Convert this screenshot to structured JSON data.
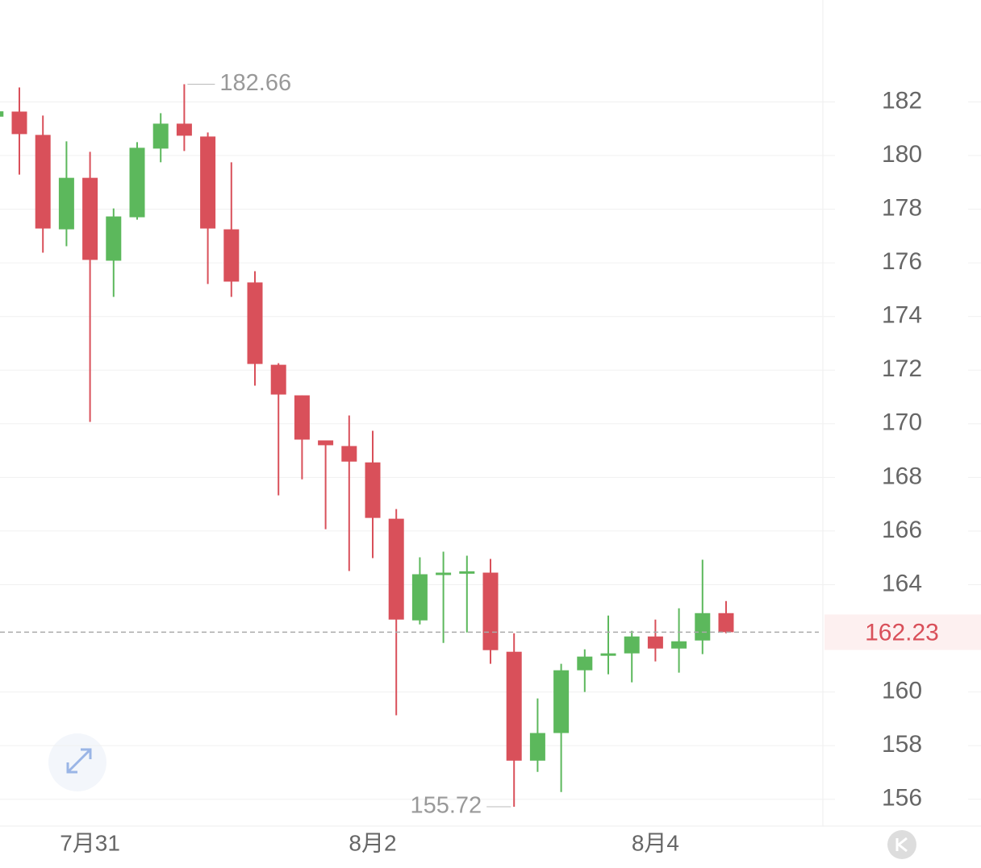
{
  "chart_data": {
    "type": "candlestick",
    "categories": [
      null,
      null,
      null,
      null,
      "7月31",
      null,
      null,
      null,
      null,
      null,
      null,
      null,
      null,
      null,
      null,
      null,
      "8月2",
      null,
      null,
      null,
      null,
      null,
      null,
      null,
      null,
      null,
      null,
      null,
      "8月4",
      null,
      null,
      null
    ],
    "open": [
      181.45,
      181.64,
      180.77,
      177.25,
      179.17,
      176.08,
      177.7,
      180.26,
      181.19,
      180.71,
      177.25,
      175.27,
      172.2,
      171.06,
      169.38,
      169.17,
      168.56,
      166.46,
      162.67,
      164.39,
      164.45,
      164.45,
      161.5,
      157.44,
      158.47,
      160.81,
      161.35,
      161.44,
      162.07,
      161.62,
      161.92,
      162.94
    ],
    "high": [
      181.7,
      182.54,
      181.49,
      180.53,
      180.14,
      178.03,
      180.5,
      181.58,
      182.66,
      180.86,
      179.75,
      175.69,
      172.26,
      171.06,
      169.38,
      170.31,
      169.74,
      166.82,
      165.02,
      165.23,
      165.08,
      164.96,
      162.19,
      159.76,
      161.05,
      161.59,
      162.85,
      162.28,
      162.7,
      163.12,
      164.93,
      163.39
    ],
    "low": [
      181.4,
      179.29,
      176.38,
      176.62,
      170.07,
      174.73,
      177.61,
      179.75,
      180.17,
      175.21,
      174.73,
      171.42,
      167.33,
      167.93,
      166.07,
      164.51,
      164.99,
      159.13,
      162.52,
      161.83,
      162.22,
      161.05,
      155.72,
      157.02,
      156.27,
      160.0,
      160.66,
      160.36,
      161.14,
      160.72,
      161.41,
      162.19
    ],
    "close": [
      181.65,
      180.8,
      177.28,
      179.17,
      176.11,
      177.73,
      180.29,
      181.19,
      180.74,
      177.28,
      175.3,
      172.23,
      171.09,
      169.41,
      169.2,
      168.59,
      166.49,
      162.7,
      164.39,
      164.45,
      164.5,
      161.56,
      157.44,
      158.47,
      160.81,
      161.32,
      161.44,
      162.07,
      161.62,
      161.89,
      162.94,
      162.23
    ],
    "up_color": "#5cb85c",
    "down_color": "#d9505a",
    "ylim": [
      155,
      185.8
    ],
    "yticks": [
      156,
      158,
      160,
      164,
      166,
      168,
      170,
      172,
      174,
      176,
      178,
      180,
      182
    ],
    "grid": true,
    "last_price": 162.23,
    "annotations": [
      {
        "text": "182.66"
      },
      {
        "text": "155.72"
      }
    ]
  }
}
